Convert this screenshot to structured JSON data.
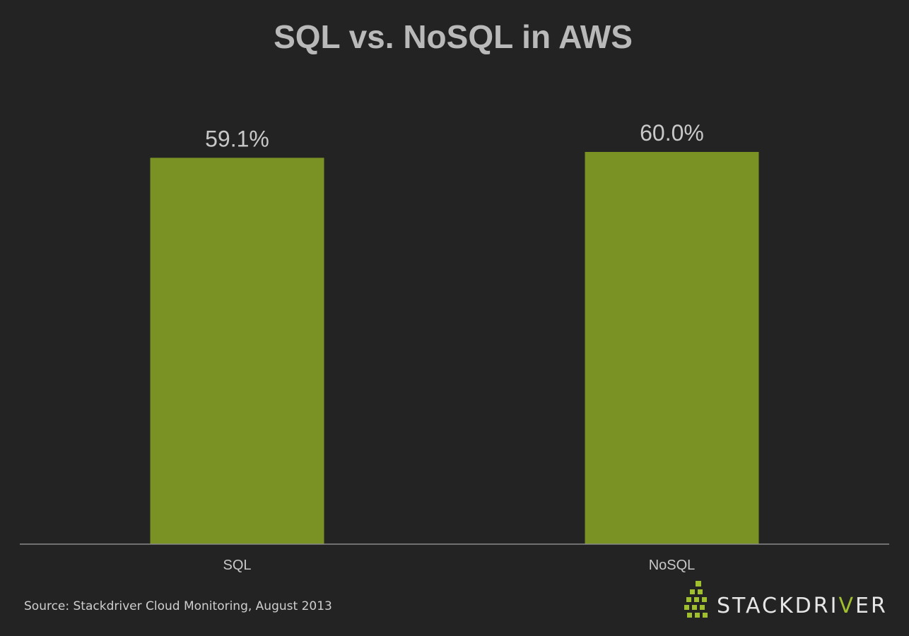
{
  "chart_data": {
    "type": "bar",
    "title": "SQL vs. NoSQL in AWS",
    "categories": [
      "SQL",
      "NoSQL"
    ],
    "values": [
      59.1,
      60.0
    ],
    "value_labels": [
      "59.1%",
      "60.0%"
    ],
    "unit": "%",
    "xlabel": "",
    "ylabel": "",
    "ylim": [
      0,
      65
    ],
    "grid": false,
    "bar_color": "#7a9224",
    "background_color": "#232323"
  },
  "footer": {
    "source": "Source: Stackdriver Cloud Monitoring, August 2013"
  },
  "logo": {
    "text_part1": "STACKDRI",
    "text_accent": "V",
    "text_part2": "ER",
    "icon": "stacked-cubes-icon",
    "accent_color": "#9fbf2e"
  }
}
